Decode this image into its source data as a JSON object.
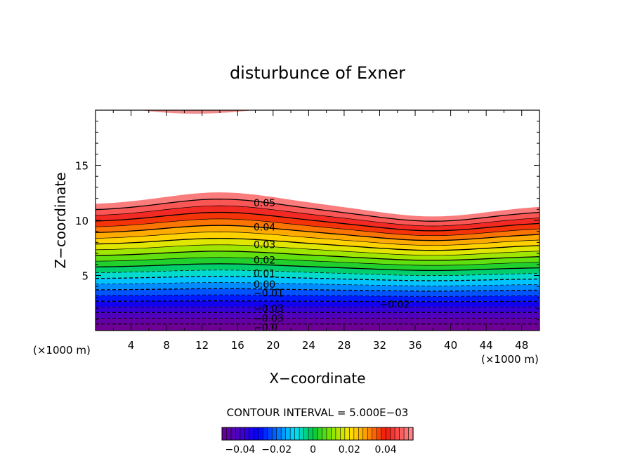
{
  "chart_data": {
    "type": "contour",
    "title": "disturbunce of Exner",
    "xlabel": "X−coordinate",
    "ylabel": "Z−coordinate",
    "x_unit": "(×1000 m)",
    "z_unit": "(×1000 m)",
    "xlim": [
      0,
      50
    ],
    "ylim": [
      0,
      20
    ],
    "x_ticks": [
      4,
      8,
      12,
      16,
      20,
      24,
      28,
      32,
      36,
      40,
      44,
      48
    ],
    "y_ticks": [
      5,
      10,
      15
    ],
    "contour_interval_text": "CONTOUR INTERVAL = 5.000E−03",
    "colorbar": {
      "range": [
        -0.05,
        0.055
      ],
      "tick_values": [
        -0.04,
        -0.02,
        0,
        0.02,
        0.04
      ],
      "tick_labels": [
        "−0.04",
        "−0.02",
        "0",
        "0.02",
        "0.04"
      ]
    },
    "contour_labels": [
      {
        "text": "0.05",
        "x": 17.8,
        "z": 11.6
      },
      {
        "text": "0.04",
        "x": 17.8,
        "z": 9.4
      },
      {
        "text": "0.03",
        "x": 17.8,
        "z": 7.8
      },
      {
        "text": "0.02",
        "x": 17.8,
        "z": 6.4
      },
      {
        "text": "0.01",
        "x": 17.8,
        "z": 5.2
      },
      {
        "text": "0.00",
        "x": 17.8,
        "z": 4.2
      },
      {
        "text": "−0.01",
        "x": 17.8,
        "z": 3.4
      },
      {
        "text": "−0.02",
        "x": 32.0,
        "z": 2.4
      },
      {
        "text": "−0.03",
        "x": 17.8,
        "z": 2.0
      },
      {
        "text": "−0.03",
        "x": 17.8,
        "z": 1.1
      },
      {
        "text": "−0.0",
        "x": 17.8,
        "z": 0.3
      }
    ]
  }
}
